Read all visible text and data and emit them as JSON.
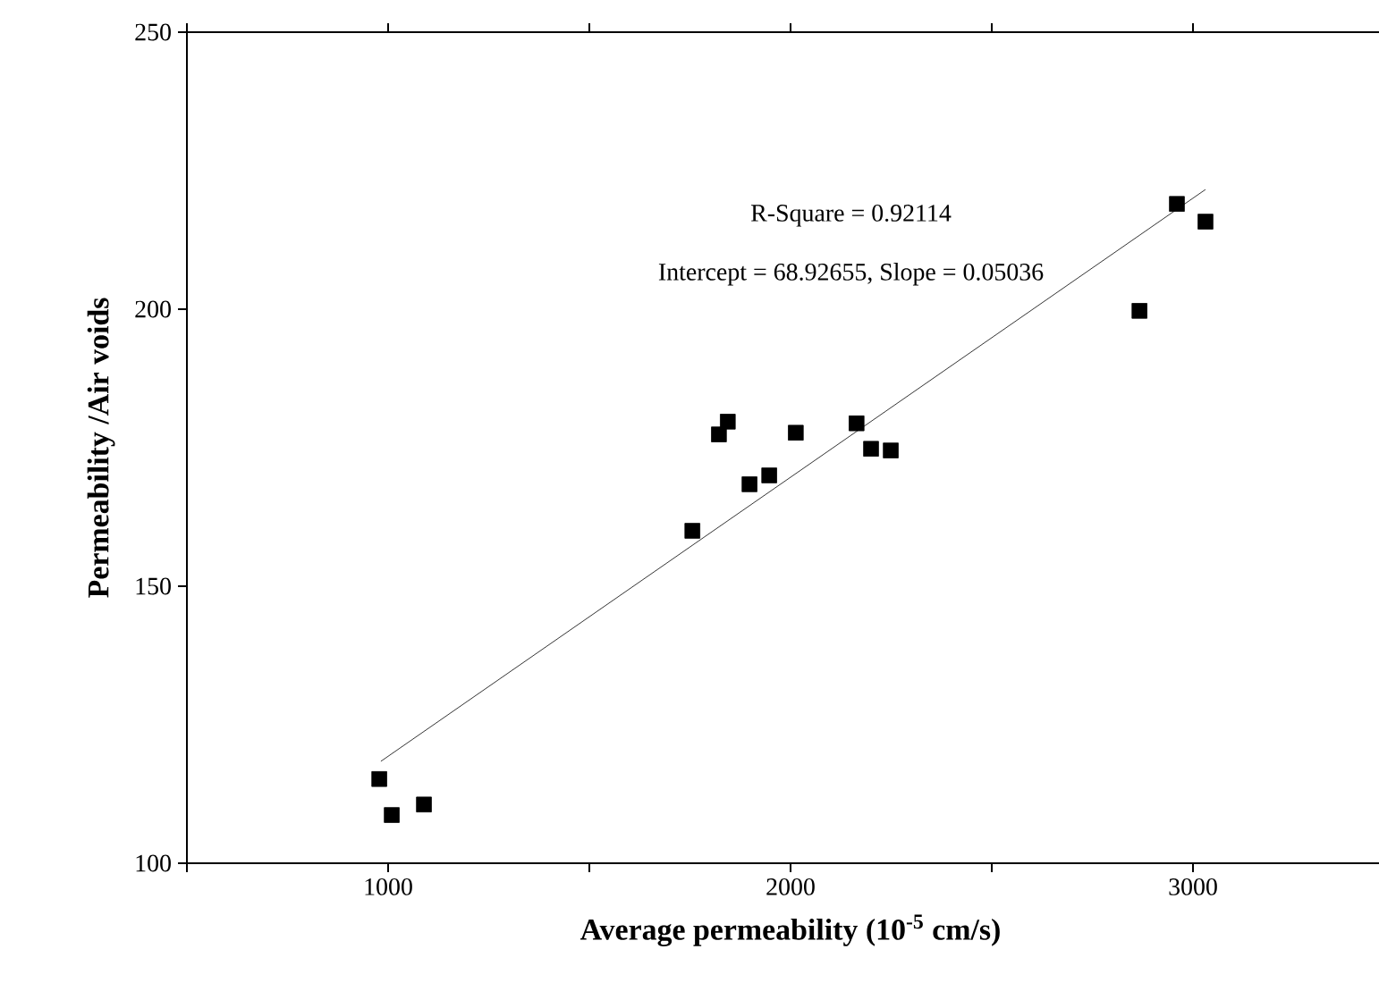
{
  "chart_data": {
    "type": "scatter",
    "xlabel": "Average permeability (10$^{-5}$ cm/s)",
    "ylabel": "Permeability /Air voids",
    "annotations": [
      "R-Square = 0.92114",
      "Intercept = 68.92655, Slope = 0.05036"
    ],
    "xlim": [
      500,
      3500
    ],
    "ylim": [
      100,
      250
    ],
    "xticks": [
      {
        "value": 500,
        "label": null
      },
      1000,
      {
        "value": 1500,
        "label": null
      },
      2000,
      {
        "value": 2500,
        "label": null
      },
      3000
    ],
    "yticks": [
      100,
      150,
      200,
      250
    ],
    "series": [
      {
        "color": "#000000",
        "marker": "square",
        "x": [
          978,
          1009,
          1089,
          1756,
          1822,
          1844,
          1898,
          1947,
          2013,
          2164,
          2200,
          2249,
          2867,
          2960,
          3031
        ],
        "values": [
          115.2,
          108.7,
          110.6,
          160,
          177.4,
          179.7,
          168.4,
          170,
          177.7,
          179.4,
          174.8,
          174.5,
          199.7,
          219,
          215.8
        ]
      },
      {
        "type": "line",
        "color": "#000000",
        "marker": "none",
        "line_style": "solid",
        "x": [
          982,
          3031
        ],
        "values": [
          118.4,
          221.6
        ]
      }
    ]
  }
}
